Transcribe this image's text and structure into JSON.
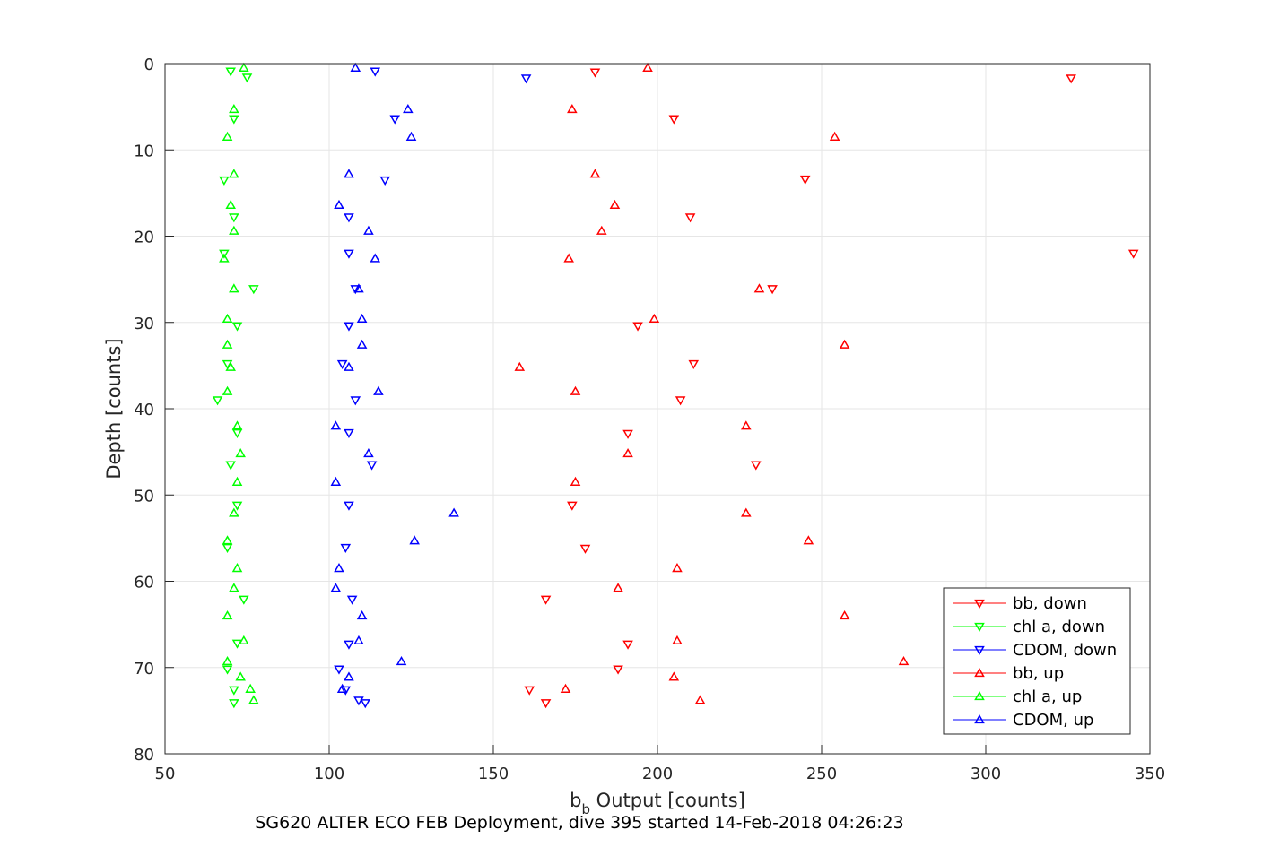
{
  "caption": "SG620 ALTER ECO FEB Deployment, dive 395 started 14-Feb-2018 04:26:23",
  "chart_data": {
    "type": "scatter",
    "xlabel_main": "b",
    "xlabel_sub": "b",
    "xlabel_rest": " Output [counts]",
    "ylabel": "Depth [counts]",
    "xlim": [
      50,
      350
    ],
    "ylim": [
      0,
      80
    ],
    "y_reversed": true,
    "grid": true,
    "legend_position": "bottom-right",
    "x_ticks": [
      50,
      100,
      150,
      200,
      250,
      300,
      350
    ],
    "y_ticks": [
      0,
      10,
      20,
      30,
      40,
      50,
      60,
      70,
      80
    ],
    "series": [
      {
        "name": "bb, down",
        "color": "#ff0000",
        "marker": "triangle-down",
        "points": [
          [
            181,
            1
          ],
          [
            326,
            1.7
          ],
          [
            205,
            6.4
          ],
          [
            245,
            13.4
          ],
          [
            210,
            17.8
          ],
          [
            345,
            22
          ],
          [
            235,
            26.1
          ],
          [
            194,
            30.4
          ],
          [
            211,
            34.8
          ],
          [
            207,
            39
          ],
          [
            191,
            42.9
          ],
          [
            230,
            46.5
          ],
          [
            174,
            51.2
          ],
          [
            178,
            56.2
          ],
          [
            166,
            62.1
          ],
          [
            191,
            67.3
          ],
          [
            188,
            70.2
          ],
          [
            161,
            72.6
          ],
          [
            166,
            74.1
          ]
        ]
      },
      {
        "name": "chl a, down",
        "color": "#00ff00",
        "marker": "triangle-down",
        "points": [
          [
            70,
            0.9
          ],
          [
            75,
            1.6
          ],
          [
            71,
            6.4
          ],
          [
            68,
            13.5
          ],
          [
            71,
            17.8
          ],
          [
            68,
            22
          ],
          [
            77,
            26.1
          ],
          [
            72,
            30.4
          ],
          [
            69,
            34.8
          ],
          [
            66,
            39
          ],
          [
            72,
            42.8
          ],
          [
            70,
            46.5
          ],
          [
            72,
            51.2
          ],
          [
            69,
            56.1
          ],
          [
            74,
            62.1
          ],
          [
            72,
            67.2
          ],
          [
            69,
            70.2
          ],
          [
            71,
            72.6
          ],
          [
            71,
            74.1
          ]
        ]
      },
      {
        "name": "CDOM, down",
        "color": "#0000ff",
        "marker": "triangle-down",
        "points": [
          [
            114,
            0.9
          ],
          [
            160,
            1.7
          ],
          [
            120,
            6.4
          ],
          [
            117,
            13.5
          ],
          [
            106,
            17.8
          ],
          [
            106,
            22
          ],
          [
            108,
            26.1
          ],
          [
            106,
            30.4
          ],
          [
            104,
            34.8
          ],
          [
            108,
            39
          ],
          [
            106,
            42.8
          ],
          [
            113,
            46.5
          ],
          [
            106,
            51.2
          ],
          [
            105,
            56.1
          ],
          [
            107,
            62.1
          ],
          [
            106,
            67.3
          ],
          [
            103,
            70.2
          ],
          [
            105,
            72.6
          ],
          [
            109,
            73.8
          ],
          [
            111,
            74.1
          ]
        ]
      },
      {
        "name": "bb, up",
        "color": "#ff0000",
        "marker": "triangle-up",
        "points": [
          [
            197,
            0.5
          ],
          [
            174,
            5.3
          ],
          [
            254,
            8.5
          ],
          [
            181,
            12.8
          ],
          [
            187,
            16.4
          ],
          [
            183,
            19.4
          ],
          [
            173,
            22.6
          ],
          [
            231,
            26.1
          ],
          [
            199,
            29.6
          ],
          [
            257,
            32.6
          ],
          [
            158,
            35.2
          ],
          [
            175,
            38
          ],
          [
            227,
            42
          ],
          [
            191,
            45.2
          ],
          [
            175,
            48.5
          ],
          [
            227,
            52.1
          ],
          [
            246,
            55.3
          ],
          [
            206,
            58.5
          ],
          [
            188,
            60.8
          ],
          [
            257,
            64
          ],
          [
            206,
            66.9
          ],
          [
            275,
            69.3
          ],
          [
            205,
            71.1
          ],
          [
            172,
            72.5
          ],
          [
            213,
            73.8
          ]
        ]
      },
      {
        "name": "chl a, up",
        "color": "#00ff00",
        "marker": "triangle-up",
        "points": [
          [
            74,
            0.5
          ],
          [
            71,
            5.3
          ],
          [
            69,
            8.5
          ],
          [
            71,
            12.8
          ],
          [
            70,
            16.4
          ],
          [
            71,
            19.4
          ],
          [
            68,
            22.6
          ],
          [
            71,
            26.1
          ],
          [
            69,
            29.6
          ],
          [
            69,
            32.6
          ],
          [
            70,
            35.2
          ],
          [
            69,
            38
          ],
          [
            72,
            42
          ],
          [
            73,
            45.2
          ],
          [
            72,
            48.5
          ],
          [
            71,
            52.1
          ],
          [
            69,
            55.3
          ],
          [
            72,
            58.5
          ],
          [
            71,
            60.8
          ],
          [
            69,
            64
          ],
          [
            74,
            66.9
          ],
          [
            69,
            69.3
          ],
          [
            73,
            71.1
          ],
          [
            76,
            72.5
          ],
          [
            77,
            73.8
          ]
        ]
      },
      {
        "name": "CDOM, up",
        "color": "#0000ff",
        "marker": "triangle-up",
        "points": [
          [
            108,
            0.5
          ],
          [
            124,
            5.3
          ],
          [
            125,
            8.5
          ],
          [
            106,
            12.8
          ],
          [
            103,
            16.4
          ],
          [
            112,
            19.4
          ],
          [
            114,
            22.6
          ],
          [
            109,
            26.1
          ],
          [
            110,
            29.6
          ],
          [
            110,
            32.6
          ],
          [
            106,
            35.2
          ],
          [
            115,
            38
          ],
          [
            102,
            42
          ],
          [
            112,
            45.2
          ],
          [
            102,
            48.5
          ],
          [
            138,
            52.1
          ],
          [
            126,
            55.3
          ],
          [
            103,
            58.5
          ],
          [
            102,
            60.8
          ],
          [
            110,
            64
          ],
          [
            109,
            66.9
          ],
          [
            122,
            69.3
          ],
          [
            106,
            71.1
          ],
          [
            104,
            72.5
          ]
        ]
      }
    ]
  }
}
